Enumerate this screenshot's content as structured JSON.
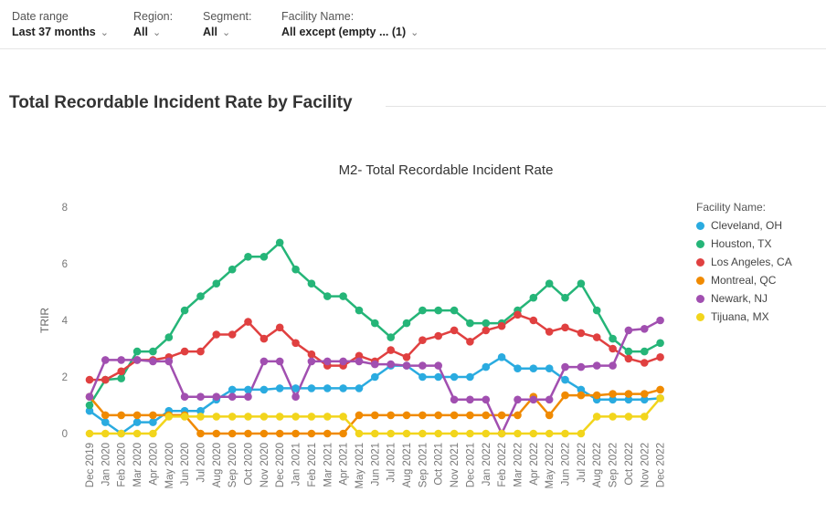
{
  "filters": [
    {
      "label": "Date range",
      "value": "Last 37 months"
    },
    {
      "label": "Region:",
      "value": "All"
    },
    {
      "label": "Segment:",
      "value": "All"
    },
    {
      "label": "Facility Name:",
      "value": "All except (empty ... (1)"
    }
  ],
  "section_title": "Total Recordable Incident Rate by Facility",
  "icons": {
    "dropdown": "chevron-down-icon"
  },
  "chart_data": {
    "type": "line",
    "title": "M2- Total Recordable Incident Rate",
    "xlabel": "",
    "ylabel": "TRIR",
    "ylim": [
      0,
      8
    ],
    "yticks": [
      "0",
      "2",
      "4",
      "6",
      "8"
    ],
    "grid": false,
    "legend_title": "Facility Name:",
    "legend_position": "right",
    "categories": [
      "Dec 2019",
      "Jan 2020",
      "Feb 2020",
      "Mar 2020",
      "Apr 2020",
      "May 2020",
      "Jun 2020",
      "Jul 2020",
      "Aug 2020",
      "Sep 2020",
      "Oct 2020",
      "Nov 2020",
      "Dec 2020",
      "Jan 2021",
      "Feb 2021",
      "Mar 2021",
      "Apr 2021",
      "May 2021",
      "Jun 2021",
      "Jul 2021",
      "Aug 2021",
      "Sep 2021",
      "Oct 2021",
      "Nov 2021",
      "Dec 2021",
      "Jan 2022",
      "Feb 2022",
      "Mar 2022",
      "Apr 2022",
      "May 2022",
      "Jun 2022",
      "Jul 2022",
      "Aug 2022",
      "Sep 2022",
      "Oct 2022",
      "Nov 2022",
      "Dec 2022"
    ],
    "series": [
      {
        "name": "Cleveland, OH",
        "color": "#2aabe0",
        "values": [
          0.8,
          0.4,
          0.0,
          0.4,
          0.4,
          0.8,
          0.8,
          0.8,
          1.2,
          1.55,
          1.55,
          1.55,
          1.6,
          1.6,
          1.6,
          1.6,
          1.6,
          1.6,
          2.0,
          2.4,
          2.4,
          2.0,
          2.0,
          2.0,
          2.0,
          2.35,
          2.7,
          2.3,
          2.3,
          2.3,
          1.9,
          1.55,
          1.2,
          1.2,
          1.2,
          1.2,
          1.25
        ]
      },
      {
        "name": "Houston, TX",
        "color": "#25b578",
        "values": [
          1.0,
          1.9,
          1.95,
          2.9,
          2.9,
          3.4,
          4.35,
          4.85,
          5.3,
          5.8,
          6.25,
          6.25,
          6.75,
          5.8,
          5.3,
          4.85,
          4.85,
          4.35,
          3.9,
          3.4,
          3.9,
          4.35,
          4.35,
          4.35,
          3.9,
          3.9,
          3.9,
          4.35,
          4.8,
          5.3,
          4.8,
          5.3,
          4.35,
          3.35,
          2.9,
          2.9,
          3.2
        ]
      },
      {
        "name": "Los Angeles, CA",
        "color": "#e04040",
        "values": [
          1.9,
          1.9,
          2.2,
          2.6,
          2.6,
          2.7,
          2.9,
          2.9,
          3.5,
          3.5,
          3.95,
          3.35,
          3.75,
          3.2,
          2.8,
          2.4,
          2.4,
          2.75,
          2.55,
          2.95,
          2.7,
          3.3,
          3.45,
          3.65,
          3.25,
          3.65,
          3.8,
          4.2,
          4.0,
          3.6,
          3.75,
          3.55,
          3.4,
          3.0,
          2.65,
          2.5,
          2.7
        ]
      },
      {
        "name": "Montreal, QC",
        "color": "#f08a00",
        "values": [
          1.3,
          0.65,
          0.65,
          0.65,
          0.65,
          0.65,
          0.65,
          0.0,
          0.0,
          0.0,
          0.0,
          0.0,
          0.0,
          0.0,
          0.0,
          0.0,
          0.0,
          0.65,
          0.65,
          0.65,
          0.65,
          0.65,
          0.65,
          0.65,
          0.65,
          0.65,
          0.65,
          0.65,
          1.3,
          0.65,
          1.35,
          1.35,
          1.35,
          1.4,
          1.4,
          1.4,
          1.55
        ]
      },
      {
        "name": "Newark, NJ",
        "color": "#a14fb0",
        "values": [
          1.3,
          2.6,
          2.6,
          2.6,
          2.55,
          2.55,
          1.3,
          1.3,
          1.3,
          1.3,
          1.3,
          2.55,
          2.55,
          1.3,
          2.55,
          2.55,
          2.55,
          2.55,
          2.45,
          2.45,
          2.4,
          2.4,
          2.4,
          1.2,
          1.2,
          1.2,
          0.0,
          1.2,
          1.2,
          1.2,
          2.35,
          2.35,
          2.4,
          2.4,
          3.65,
          3.7,
          4.0
        ]
      },
      {
        "name": "Tijuana, MX",
        "color": "#f2d51c",
        "values": [
          0.0,
          0.0,
          0.0,
          0.0,
          0.0,
          0.6,
          0.6,
          0.6,
          0.6,
          0.6,
          0.6,
          0.6,
          0.6,
          0.6,
          0.6,
          0.6,
          0.6,
          0.0,
          0.0,
          0.0,
          0.0,
          0.0,
          0.0,
          0.0,
          0.0,
          0.0,
          0.0,
          0.0,
          0.0,
          0.0,
          0.0,
          0.0,
          0.6,
          0.6,
          0.6,
          0.6,
          1.25
        ]
      }
    ]
  }
}
